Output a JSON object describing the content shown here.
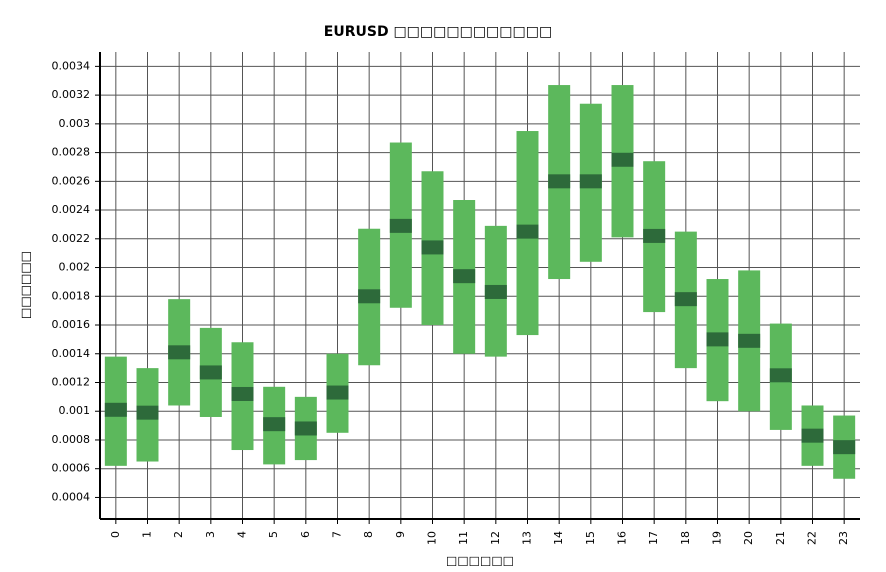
{
  "chart_data": {
    "type": "range",
    "title": "EURUSD □□□□□□□□□□□□",
    "x_label": "□□□□□□",
    "y_label": "□□□□□□",
    "categories": [
      "0",
      "1",
      "2",
      "3",
      "4",
      "5",
      "6",
      "7",
      "8",
      "9",
      "10",
      "11",
      "12",
      "13",
      "14",
      "15",
      "16",
      "17",
      "18",
      "19",
      "20",
      "21",
      "22",
      "23"
    ],
    "low": [
      0.00062,
      0.00065,
      0.00104,
      0.00096,
      0.00073,
      0.00063,
      0.00066,
      0.00085,
      0.00132,
      0.00172,
      0.0016,
      0.0014,
      0.00138,
      0.00153,
      0.00192,
      0.00204,
      0.00221,
      0.00169,
      0.0013,
      0.00107,
      0.001,
      0.00087,
      0.00062,
      0.00053
    ],
    "high": [
      0.00138,
      0.0013,
      0.00178,
      0.00158,
      0.00148,
      0.00117,
      0.0011,
      0.0014,
      0.00227,
      0.00287,
      0.00267,
      0.00247,
      0.00229,
      0.00295,
      0.00327,
      0.00314,
      0.00327,
      0.00274,
      0.00225,
      0.00192,
      0.00198,
      0.00161,
      0.00104,
      0.00097
    ],
    "mean": [
      0.00101,
      0.00099,
      0.00141,
      0.00127,
      0.00112,
      0.00091,
      0.00088,
      0.00113,
      0.0018,
      0.00229,
      0.00214,
      0.00194,
      0.00183,
      0.00225,
      0.0026,
      0.0026,
      0.00275,
      0.00222,
      0.00178,
      0.0015,
      0.00149,
      0.00125,
      0.00083,
      0.00075
    ],
    "color": "#5cb85c",
    "mean_color": "#2d6a3a",
    "ylim": [
      0.00025,
      0.0035
    ],
    "yticks": [
      0.0004,
      0.0006,
      0.0008,
      0.001,
      0.0012,
      0.0014,
      0.0016,
      0.0018,
      0.002,
      0.0022,
      0.0024,
      0.0026,
      0.0028,
      0.003,
      0.0032,
      0.0034
    ],
    "grid": true
  }
}
